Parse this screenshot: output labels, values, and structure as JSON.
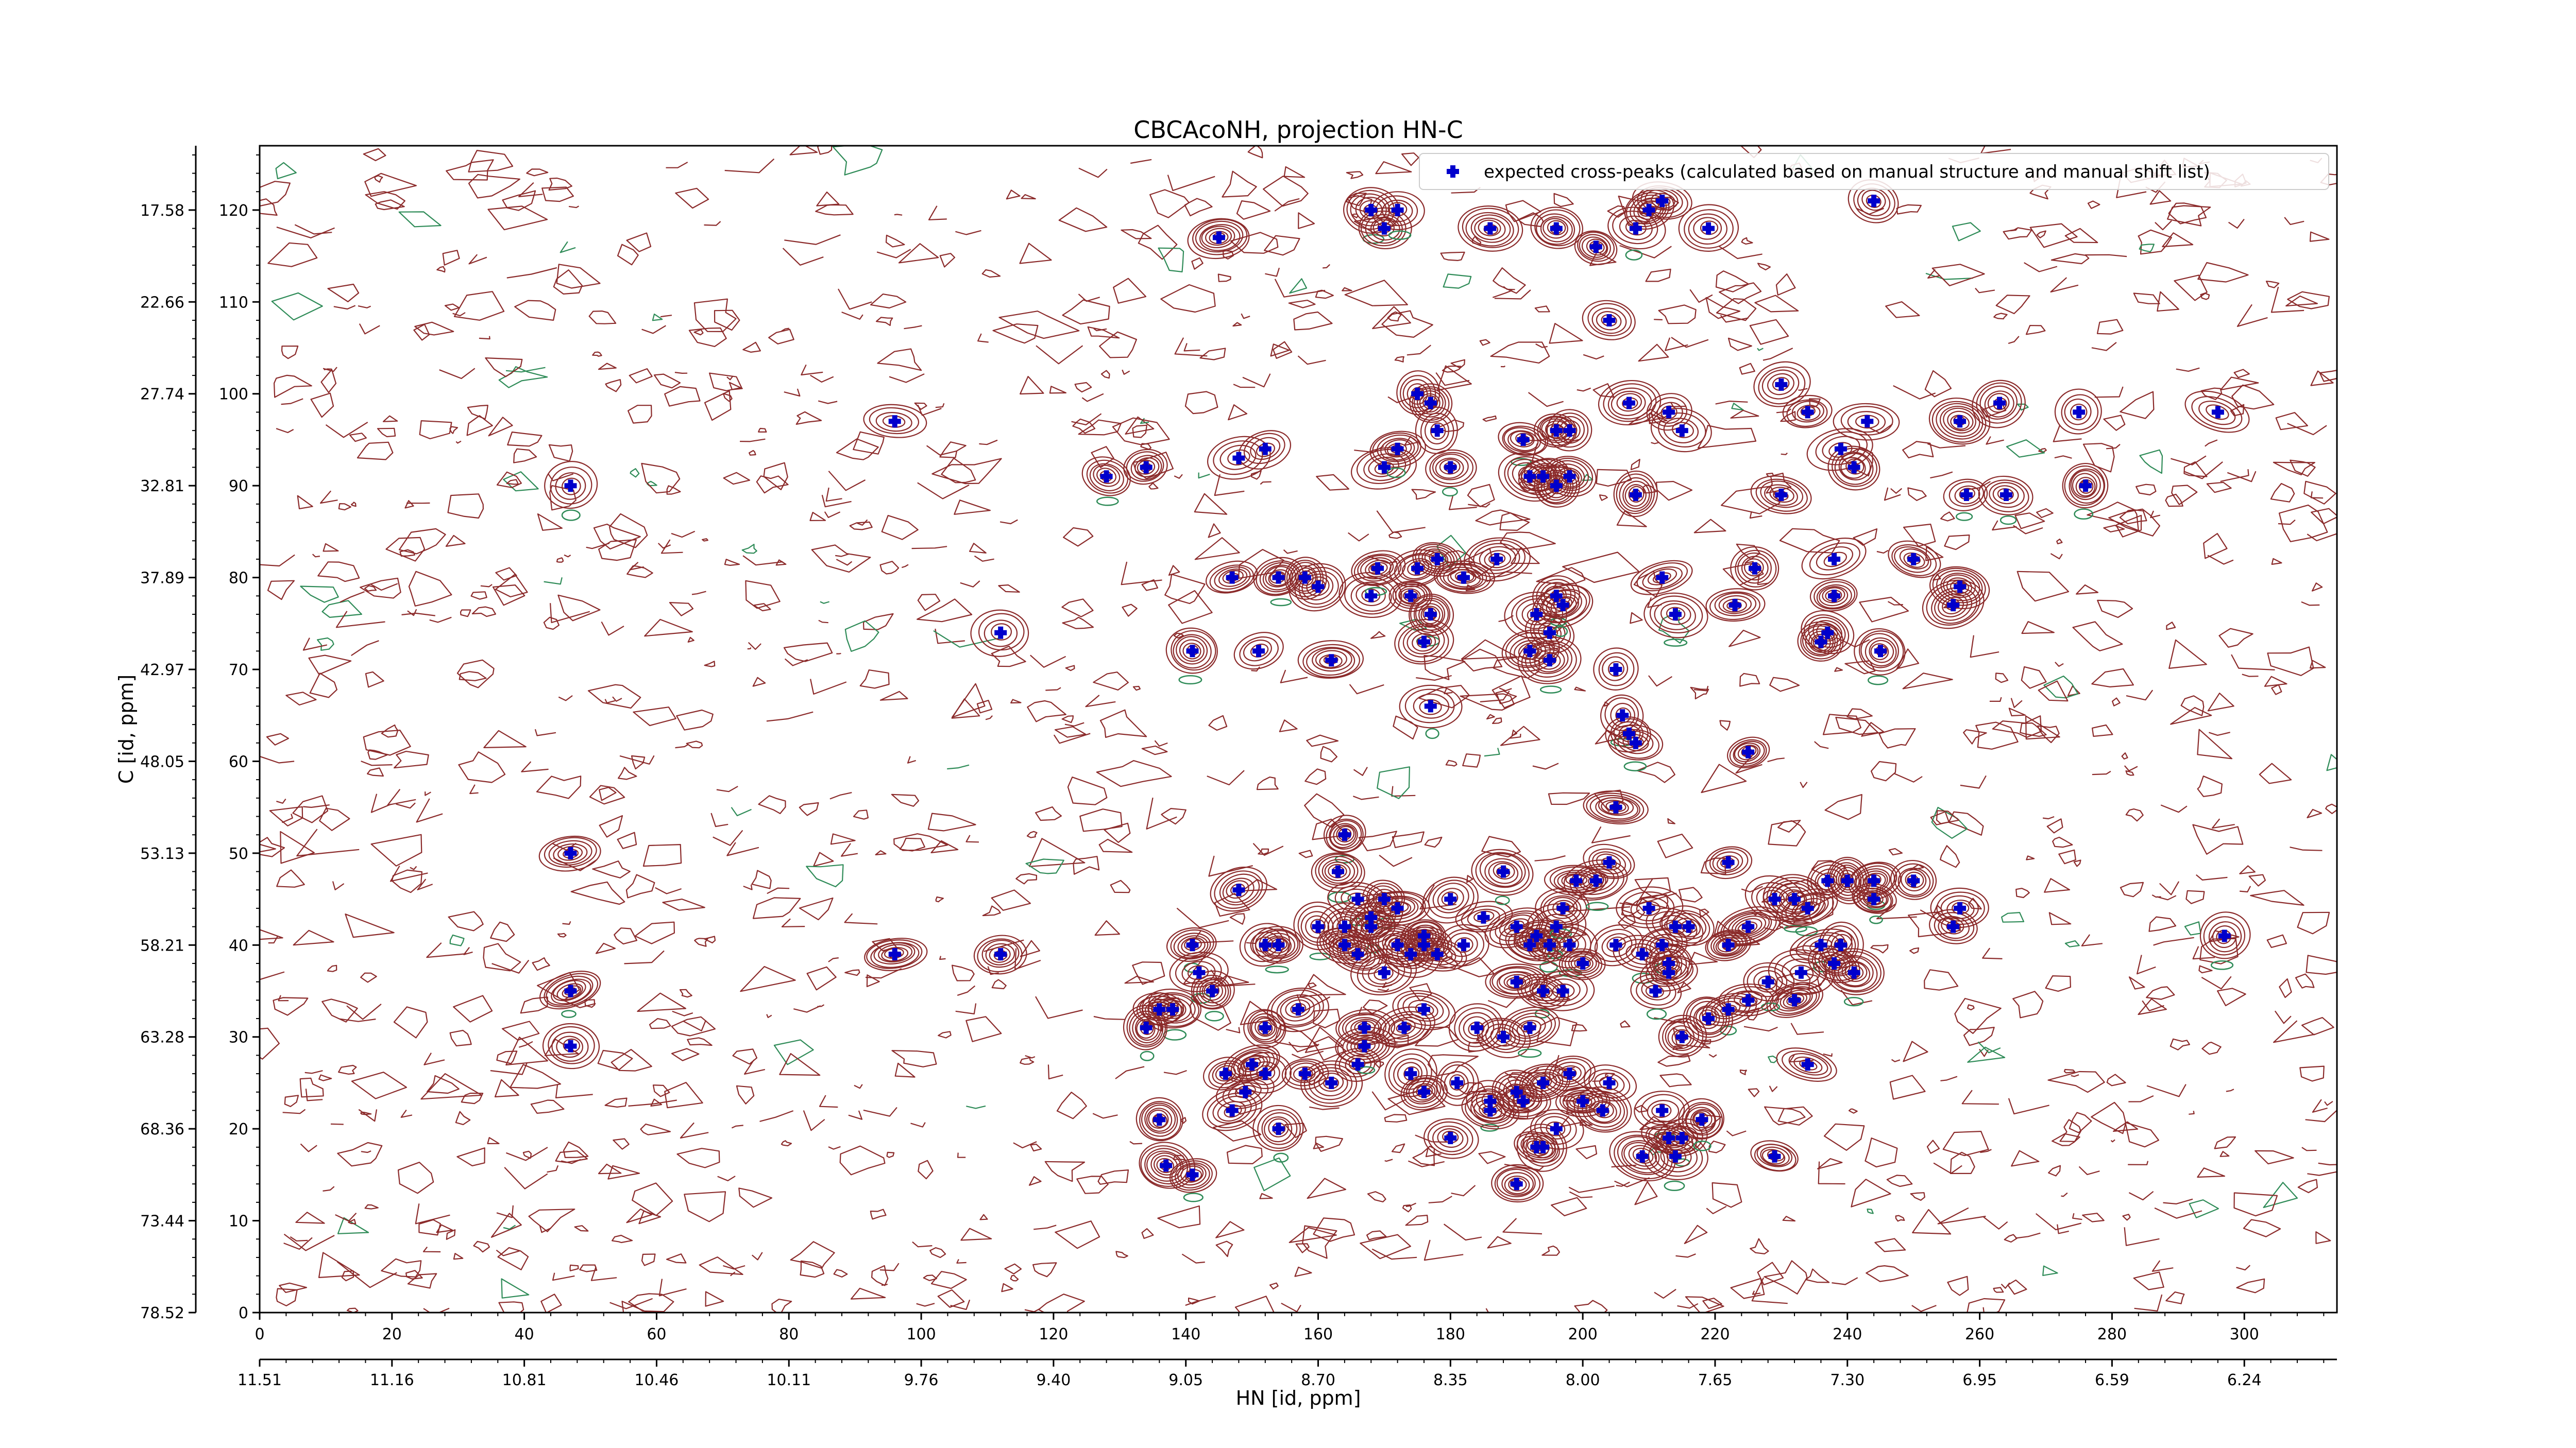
{
  "chart_data": {
    "type": "scatter",
    "title": "CBCAcoNH, projection HN-C",
    "xlabel": "HN [id, ppm]",
    "ylabel": "C [id, ppm]",
    "x_index_ticks": [
      "0",
      "20",
      "40",
      "60",
      "80",
      "100",
      "120",
      "140",
      "160",
      "180",
      "200",
      "220",
      "240",
      "260",
      "280",
      "300"
    ],
    "x_ppm_ticks": [
      "11.51",
      "11.16",
      "10.81",
      "10.46",
      "10.11",
      "9.76",
      "9.40",
      "9.05",
      "8.70",
      "8.35",
      "8.00",
      "7.65",
      "7.30",
      "6.95",
      "6.59",
      "6.24"
    ],
    "y_index_ticks": [
      "0",
      "10",
      "20",
      "30",
      "40",
      "50",
      "60",
      "70",
      "80",
      "90",
      "100",
      "110",
      "120"
    ],
    "y_ppm_ticks": [
      "78.52",
      "73.44",
      "68.36",
      "63.28",
      "58.21",
      "53.13",
      "48.05",
      "42.97",
      "37.89",
      "32.81",
      "27.74",
      "22.66",
      "17.58"
    ],
    "xlim": [
      0,
      314
    ],
    "ylim": [
      0,
      127
    ],
    "legend": {
      "position": "top-right",
      "entry": "expected cross-peaks (calculated based on manual structure and manual shift list)"
    },
    "colors": {
      "peak": "#0000cc",
      "contour_positive": "#8b2a2a",
      "contour_negative": "#2e8b57"
    },
    "series": [
      {
        "name": "expected cross-peaks (calculated based on manual structure and manual shift list)",
        "points": [
          [
            47,
            90
          ],
          [
            96,
            97
          ],
          [
            47,
            50
          ],
          [
            47,
            35
          ],
          [
            47,
            29
          ],
          [
            96,
            39
          ],
          [
            112,
            39
          ],
          [
            112,
            74
          ],
          [
            128,
            91
          ],
          [
            134,
            92
          ],
          [
            145,
            117
          ],
          [
            147,
            80
          ],
          [
            141,
            72
          ],
          [
            148,
            93
          ],
          [
            152,
            94
          ],
          [
            151,
            72
          ],
          [
            154,
            80
          ],
          [
            158,
            80
          ],
          [
            160,
            79
          ],
          [
            162,
            71
          ],
          [
            164,
            52
          ],
          [
            168,
            120
          ],
          [
            170,
            118
          ],
          [
            172,
            120
          ],
          [
            168,
            78
          ],
          [
            169,
            81
          ],
          [
            170,
            92
          ],
          [
            172,
            94
          ],
          [
            174,
            78
          ],
          [
            175,
            81
          ],
          [
            177,
            76
          ],
          [
            176,
            73
          ],
          [
            178,
            82
          ],
          [
            175,
            100
          ],
          [
            177,
            99
          ],
          [
            178,
            96
          ],
          [
            180,
            92
          ],
          [
            177,
            66
          ],
          [
            182,
            80
          ],
          [
            186,
            118
          ],
          [
            187,
            82
          ],
          [
            191,
            95
          ],
          [
            192,
            91
          ],
          [
            194,
            91
          ],
          [
            196,
            96
          ],
          [
            198,
            96
          ],
          [
            196,
            90
          ],
          [
            198,
            91
          ],
          [
            196,
            118
          ],
          [
            193,
            76
          ],
          [
            195,
            74
          ],
          [
            196,
            78
          ],
          [
            195,
            71
          ],
          [
            192,
            72
          ],
          [
            197,
            77
          ],
          [
            202,
            116
          ],
          [
            204,
            108
          ],
          [
            205,
            70
          ],
          [
            206,
            65
          ],
          [
            207,
            63
          ],
          [
            208,
            62
          ],
          [
            205,
            55
          ],
          [
            204,
            49
          ],
          [
            207,
            99
          ],
          [
            208,
            89
          ],
          [
            213,
            98
          ],
          [
            215,
            96
          ],
          [
            212,
            80
          ],
          [
            214,
            76
          ],
          [
            223,
            77
          ],
          [
            226,
            81
          ],
          [
            230,
            101
          ],
          [
            234,
            98
          ],
          [
            238,
            78
          ],
          [
            236,
            73
          ],
          [
            237,
            74
          ],
          [
            239,
            94
          ],
          [
            241,
            92
          ],
          [
            243,
            97
          ],
          [
            245,
            72
          ],
          [
            230,
            89
          ],
          [
            219,
            118
          ],
          [
            210,
            120
          ],
          [
            212,
            121
          ],
          [
            208,
            118
          ],
          [
            244,
            121
          ],
          [
            238,
            82
          ],
          [
            250,
            82
          ],
          [
            257,
            97
          ],
          [
            263,
            99
          ],
          [
            275,
            98
          ],
          [
            258,
            89
          ],
          [
            264,
            89
          ],
          [
            276,
            90
          ],
          [
            257,
            79
          ],
          [
            256,
            77
          ],
          [
            296,
            98
          ],
          [
            225,
            61
          ],
          [
            222,
            49
          ],
          [
            163,
            48
          ],
          [
            166,
            45
          ],
          [
            170,
            45
          ],
          [
            168,
            42
          ],
          [
            172,
            44
          ],
          [
            176,
            40
          ],
          [
            180,
            45
          ],
          [
            182,
            40
          ],
          [
            185,
            43
          ],
          [
            188,
            48
          ],
          [
            190,
            42
          ],
          [
            193,
            41
          ],
          [
            195,
            40
          ],
          [
            196,
            42
          ],
          [
            197,
            44
          ],
          [
            198,
            40
          ],
          [
            200,
            38
          ],
          [
            192,
            40
          ],
          [
            190,
            36
          ],
          [
            194,
            35
          ],
          [
            197,
            35
          ],
          [
            199,
            47
          ],
          [
            202,
            47
          ],
          [
            205,
            40
          ],
          [
            209,
            39
          ],
          [
            210,
            44
          ],
          [
            212,
            40
          ],
          [
            213,
            37
          ],
          [
            214,
            42
          ],
          [
            216,
            42
          ],
          [
            213,
            38
          ],
          [
            211,
            35
          ],
          [
            222,
            40
          ],
          [
            225,
            42
          ],
          [
            229,
            45
          ],
          [
            232,
            45
          ],
          [
            234,
            44
          ],
          [
            237,
            47
          ],
          [
            240,
            47
          ],
          [
            244,
            47
          ],
          [
            244,
            45
          ],
          [
            250,
            47
          ],
          [
            236,
            40
          ],
          [
            238,
            38
          ],
          [
            239,
            40
          ],
          [
            241,
            37
          ],
          [
            233,
            37
          ],
          [
            232,
            34
          ],
          [
            228,
            36
          ],
          [
            225,
            34
          ],
          [
            222,
            33
          ],
          [
            219,
            32
          ],
          [
            215,
            30
          ],
          [
            256,
            42
          ],
          [
            257,
            44
          ],
          [
            297,
            41
          ],
          [
            234,
            27
          ],
          [
            170,
            37
          ],
          [
            172,
            40
          ],
          [
            174,
            39
          ],
          [
            176,
            41
          ],
          [
            178,
            39
          ],
          [
            168,
            43
          ],
          [
            164,
            42
          ],
          [
            160,
            42
          ],
          [
            164,
            40
          ],
          [
            166,
            39
          ],
          [
            148,
            46
          ],
          [
            152,
            40
          ],
          [
            154,
            40
          ],
          [
            141,
            40
          ],
          [
            142,
            37
          ],
          [
            144,
            35
          ],
          [
            136,
            33
          ],
          [
            138,
            33
          ],
          [
            134,
            31
          ],
          [
            152,
            31
          ],
          [
            157,
            33
          ],
          [
            158,
            26
          ],
          [
            162,
            25
          ],
          [
            166,
            27
          ],
          [
            174,
            26
          ],
          [
            176,
            24
          ],
          [
            181,
            25
          ],
          [
            186,
            23
          ],
          [
            190,
            24
          ],
          [
            194,
            25
          ],
          [
            198,
            26
          ],
          [
            204,
            25
          ],
          [
            203,
            22
          ],
          [
            212,
            22
          ],
          [
            213,
            19
          ],
          [
            215,
            19
          ],
          [
            229,
            17
          ],
          [
            200,
            23
          ],
          [
            196,
            20
          ],
          [
            194,
            18
          ],
          [
            190,
            14
          ],
          [
            176,
            33
          ],
          [
            184,
            31
          ],
          [
            188,
            30
          ],
          [
            192,
            31
          ],
          [
            154,
            20
          ],
          [
            147,
            22
          ],
          [
            149,
            24
          ],
          [
            146,
            26
          ],
          [
            150,
            27
          ],
          [
            152,
            26
          ],
          [
            136,
            21
          ],
          [
            137,
            16
          ],
          [
            141,
            15
          ],
          [
            167,
            31
          ],
          [
            173,
            31
          ],
          [
            167,
            29
          ],
          [
            180,
            19
          ],
          [
            186,
            22
          ],
          [
            191,
            23
          ],
          [
            193,
            18
          ],
          [
            209,
            17
          ],
          [
            214,
            17
          ],
          [
            218,
            21
          ]
        ]
      }
    ]
  }
}
